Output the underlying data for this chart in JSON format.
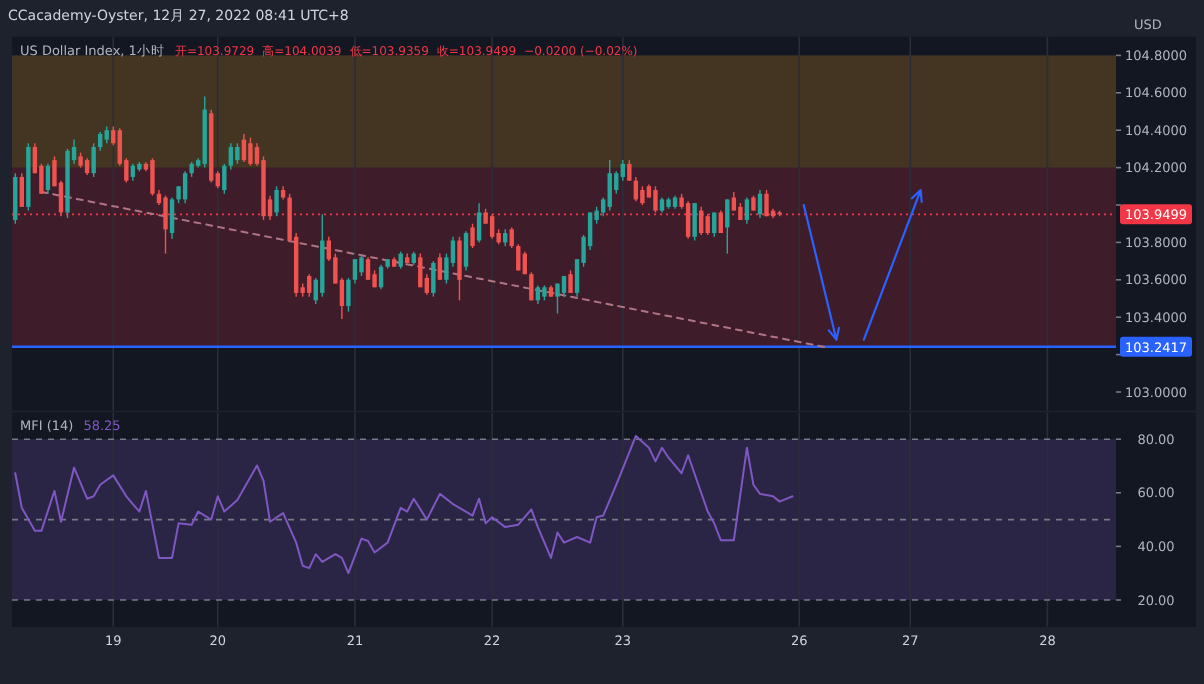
{
  "chart_data": [
    {
      "type": "candlestick",
      "subtitle": "US Dollar Index, 1小时",
      "ylabel": "USD",
      "annotations": [
        "CCacademy-Oyster, 12月 27, 2022 08:41 UTC+8",
        "开=103.9729",
        "高=104.0039",
        "低=103.9359",
        "收=103.9499",
        "−0.0200 (−0.02%)"
      ],
      "categories": [
        null,
        null,
        null,
        null,
        null,
        null,
        null,
        null,
        null,
        null,
        null,
        null,
        null,
        null,
        null,
        "19",
        null,
        null,
        null,
        null,
        null,
        null,
        null,
        null,
        null,
        null,
        null,
        null,
        null,
        null,
        null,
        "20",
        null,
        null,
        null,
        null,
        null,
        null,
        null,
        null,
        null,
        null,
        null,
        null,
        null,
        null,
        null,
        null,
        null,
        null,
        null,
        null,
        "21",
        null,
        null,
        null,
        null,
        null,
        null,
        null,
        null,
        null,
        null,
        null,
        null,
        null,
        null,
        null,
        null,
        null,
        null,
        null,
        null,
        "22",
        null,
        null,
        null,
        null,
        null,
        null,
        null,
        null,
        null,
        null,
        null,
        null,
        null,
        null,
        null,
        null,
        null,
        null,
        null,
        "23",
        null,
        null,
        null,
        null,
        null,
        null,
        null,
        null,
        null,
        null,
        null,
        null,
        null,
        null,
        null,
        null,
        null,
        null,
        null,
        null,
        null,
        null,
        null,
        null,
        null,
        null,
        "26",
        null,
        null,
        null,
        null,
        null,
        null,
        null,
        null,
        null,
        null,
        null,
        null,
        null,
        null,
        null,
        null,
        "27",
        null,
        null,
        null,
        null,
        null,
        null,
        null,
        null,
        null,
        null,
        null,
        null,
        null,
        null,
        null,
        null,
        null,
        null,
        null,
        null,
        "28",
        null,
        null,
        null,
        null,
        null,
        null,
        null,
        null,
        null,
        null
      ],
      "ohlc": [
        [
          103.92,
          104.17,
          103.9,
          104.15
        ],
        [
          104.15,
          104.17,
          103.99,
          103.99
        ],
        [
          103.99,
          104.33,
          103.97,
          104.31
        ],
        [
          104.31,
          104.33,
          104.17,
          104.17
        ],
        [
          104.21,
          104.22,
          104.06,
          104.06
        ],
        [
          104.08,
          104.22,
          104.06,
          104.21
        ],
        [
          104.24,
          104.26,
          104.1,
          104.1
        ],
        [
          104.12,
          104.13,
          103.94,
          103.96
        ],
        [
          103.96,
          104.3,
          103.93,
          104.29
        ],
        [
          104.24,
          104.35,
          104.22,
          104.31
        ],
        [
          104.26,
          104.28,
          104.2,
          104.21
        ],
        [
          104.24,
          104.25,
          104.16,
          104.17
        ],
        [
          104.17,
          104.33,
          104.15,
          104.31
        ],
        [
          104.31,
          104.39,
          104.29,
          104.38
        ],
        [
          104.35,
          104.42,
          104.33,
          104.4
        ],
        [
          104.4,
          104.42,
          104.32,
          104.33
        ],
        [
          104.4,
          104.41,
          104.21,
          104.22
        ],
        [
          104.24,
          104.25,
          104.12,
          104.13
        ],
        [
          104.15,
          104.22,
          104.13,
          104.21
        ],
        [
          104.19,
          104.23,
          104.18,
          104.22
        ],
        [
          104.22,
          104.23,
          104.18,
          104.19
        ],
        [
          104.24,
          104.25,
          104.05,
          104.06
        ],
        [
          104.06,
          104.08,
          104.0,
          104.01
        ],
        [
          104.04,
          104.05,
          103.74,
          103.87
        ],
        [
          103.85,
          104.04,
          103.82,
          104.03
        ],
        [
          104.03,
          104.1,
          104.01,
          104.1
        ],
        [
          104.03,
          104.18,
          104.01,
          104.17
        ],
        [
          104.17,
          104.23,
          104.15,
          104.22
        ],
        [
          104.21,
          104.25,
          104.2,
          104.24
        ],
        [
          104.22,
          104.58,
          104.2,
          104.51
        ],
        [
          104.49,
          104.51,
          104.12,
          104.13
        ],
        [
          104.17,
          104.18,
          104.09,
          104.1
        ],
        [
          104.08,
          104.22,
          104.06,
          104.21
        ],
        [
          104.21,
          104.33,
          104.19,
          104.31
        ],
        [
          104.24,
          104.33,
          104.22,
          104.31
        ],
        [
          104.35,
          104.38,
          104.23,
          104.24
        ],
        [
          104.33,
          104.36,
          104.21,
          104.22
        ],
        [
          104.31,
          104.33,
          104.21,
          104.22
        ],
        [
          104.24,
          104.26,
          103.92,
          103.94
        ],
        [
          104.03,
          104.05,
          103.92,
          103.94
        ],
        [
          103.96,
          104.1,
          103.94,
          104.08
        ],
        [
          104.08,
          104.1,
          104.03,
          104.04
        ],
        [
          104.04,
          104.06,
          103.8,
          103.81
        ],
        [
          103.83,
          103.85,
          103.51,
          103.53
        ],
        [
          103.56,
          103.58,
          103.51,
          103.53
        ],
        [
          103.62,
          103.63,
          103.51,
          103.53
        ],
        [
          103.49,
          103.61,
          103.47,
          103.6
        ],
        [
          103.53,
          103.95,
          103.51,
          103.81
        ],
        [
          103.81,
          103.83,
          103.7,
          103.71
        ],
        [
          103.72,
          103.74,
          103.58,
          103.58
        ],
        [
          103.6,
          103.61,
          103.39,
          103.46
        ],
        [
          103.46,
          103.61,
          103.43,
          103.6
        ],
        [
          103.6,
          103.71,
          103.58,
          103.71
        ],
        [
          103.64,
          103.73,
          103.62,
          103.72
        ],
        [
          103.71,
          103.72,
          103.6,
          103.6
        ],
        [
          103.63,
          103.65,
          103.56,
          103.56
        ],
        [
          103.56,
          103.68,
          103.55,
          103.67
        ],
        [
          103.67,
          103.71,
          103.66,
          103.71
        ],
        [
          103.71,
          103.72,
          103.67,
          103.67
        ],
        [
          103.67,
          103.75,
          103.66,
          103.74
        ],
        [
          103.72,
          103.74,
          103.69,
          103.69
        ],
        [
          103.69,
          103.75,
          103.68,
          103.74
        ],
        [
          103.72,
          103.74,
          103.56,
          103.56
        ],
        [
          103.61,
          103.63,
          103.52,
          103.53
        ],
        [
          103.53,
          103.7,
          103.51,
          103.69
        ],
        [
          103.72,
          103.74,
          103.6,
          103.6
        ],
        [
          103.6,
          103.74,
          103.58,
          103.72
        ],
        [
          103.69,
          103.83,
          103.67,
          103.81
        ],
        [
          103.81,
          103.83,
          103.49,
          103.6
        ],
        [
          103.67,
          103.86,
          103.65,
          103.85
        ],
        [
          103.88,
          103.9,
          103.77,
          103.78
        ],
        [
          103.81,
          104.01,
          103.8,
          103.96
        ],
        [
          103.96,
          103.98,
          103.9,
          103.9
        ],
        [
          103.94,
          103.95,
          103.82,
          103.83
        ],
        [
          103.85,
          103.87,
          103.79,
          103.8
        ],
        [
          103.8,
          103.87,
          103.78,
          103.85
        ],
        [
          103.87,
          103.88,
          103.77,
          103.78
        ],
        [
          103.78,
          103.79,
          103.65,
          103.65
        ],
        [
          103.74,
          103.75,
          103.63,
          103.63
        ],
        [
          103.63,
          103.64,
          103.49,
          103.49
        ],
        [
          103.49,
          103.57,
          103.47,
          103.56
        ],
        [
          103.51,
          103.57,
          103.49,
          103.56
        ],
        [
          103.56,
          103.57,
          103.51,
          103.51
        ],
        [
          103.51,
          103.58,
          103.42,
          103.58
        ],
        [
          103.53,
          103.62,
          103.51,
          103.62
        ],
        [
          103.63,
          103.65,
          103.53,
          103.53
        ],
        [
          103.53,
          103.71,
          103.51,
          103.71
        ],
        [
          103.69,
          103.84,
          103.67,
          103.83
        ],
        [
          103.78,
          103.96,
          103.76,
          103.96
        ],
        [
          103.92,
          103.99,
          103.9,
          103.97
        ],
        [
          103.96,
          104.04,
          103.94,
          104.03
        ],
        [
          103.99,
          104.24,
          103.97,
          104.17
        ],
        [
          104.08,
          104.18,
          104.06,
          104.17
        ],
        [
          104.15,
          104.24,
          104.13,
          104.22
        ],
        [
          104.22,
          104.24,
          104.13,
          104.13
        ],
        [
          104.13,
          104.15,
          104.02,
          104.03
        ],
        [
          104.08,
          104.1,
          104.0,
          104.01
        ],
        [
          104.1,
          104.11,
          104.04,
          104.04
        ],
        [
          104.08,
          104.1,
          103.96,
          103.97
        ],
        [
          103.97,
          104.04,
          103.96,
          104.03
        ],
        [
          103.99,
          104.04,
          103.98,
          104.03
        ],
        [
          103.99,
          104.05,
          103.98,
          104.04
        ],
        [
          104.04,
          104.06,
          103.98,
          103.99
        ],
        [
          104.01,
          104.02,
          103.82,
          103.83
        ],
        [
          103.83,
          104.01,
          103.81,
          104.01
        ],
        [
          103.97,
          103.99,
          103.84,
          103.85
        ],
        [
          103.94,
          103.95,
          103.84,
          103.85
        ],
        [
          103.85,
          103.96,
          103.83,
          103.96
        ],
        [
          103.96,
          103.97,
          103.85,
          103.85
        ],
        [
          103.88,
          104.03,
          103.74,
          104.03
        ],
        [
          104.04,
          104.07,
          103.97,
          103.97
        ],
        [
          103.99,
          104.01,
          103.92,
          103.92
        ],
        [
          103.92,
          104.04,
          103.9,
          104.03
        ],
        [
          104.04,
          104.05,
          103.97,
          103.97
        ],
        [
          103.95,
          104.08,
          103.93,
          104.06
        ],
        [
          104.06,
          104.08,
          103.94,
          103.94
        ],
        [
          103.97,
          103.98,
          103.93,
          103.94
        ],
        [
          103.96,
          103.97,
          103.94,
          103.95
        ],
        null,
        null,
        null,
        null,
        null,
        null,
        null,
        null,
        null,
        null,
        null,
        null,
        null,
        null,
        null,
        null,
        null,
        null,
        null,
        null,
        null,
        null,
        null,
        null,
        null,
        null,
        null,
        null,
        null,
        null,
        null,
        null,
        null,
        null,
        null,
        null,
        null,
        null,
        null,
        null,
        null,
        null,
        null,
        null,
        null,
        null,
        null,
        null,
        null,
        null,
        null
      ],
      "ylim": [
        102.9,
        104.9
      ],
      "yticks": [
        {
          "value": 103.0,
          "label": "103.0000"
        },
        {
          "value": 103.2,
          "label": null
        },
        {
          "value": 103.4,
          "label": "103.4000"
        },
        {
          "value": 103.6,
          "label": "103.6000"
        },
        {
          "value": 103.8,
          "label": "103.8000"
        },
        {
          "value": 104.0,
          "label": null
        },
        {
          "value": 104.2,
          "label": "104.2000"
        },
        {
          "value": 104.4,
          "label": "104.4000"
        },
        {
          "value": 104.6,
          "label": "104.6000"
        },
        {
          "value": 104.8,
          "label": "104.8000"
        }
      ],
      "series": [
        {
          "type": "line",
          "color": "#b07585",
          "line_style": "dashed",
          "values": [
            null,
            null,
            null,
            null,
            104.07,
            null,
            null,
            null,
            null,
            null,
            null,
            null,
            null,
            null,
            null,
            null,
            null,
            null,
            null,
            null,
            null,
            null,
            null,
            null,
            null,
            null,
            null,
            null,
            null,
            null,
            null,
            null,
            null,
            null,
            null,
            null,
            null,
            null,
            null,
            null,
            null,
            null,
            null,
            null,
            null,
            null,
            null,
            null,
            null,
            null,
            null,
            null,
            null,
            null,
            null,
            null,
            null,
            null,
            null,
            null,
            null,
            null,
            null,
            null,
            null,
            null,
            null,
            null,
            null,
            null,
            null,
            null,
            null,
            null,
            null,
            null,
            null,
            null,
            null,
            null,
            null,
            null,
            null,
            null,
            null,
            null,
            null,
            null,
            null,
            null,
            null,
            null,
            null,
            null,
            null,
            null,
            null,
            null,
            null,
            null,
            null,
            null,
            null,
            null,
            null,
            null,
            null,
            null,
            null,
            null,
            null,
            null,
            null,
            null,
            null,
            null,
            null,
            null,
            null,
            null,
            null,
            null,
            null,
            null,
            103.24,
            null,
            null,
            null,
            null,
            null,
            null,
            null,
            null,
            null,
            null,
            null,
            null,
            null,
            null,
            null,
            null,
            null,
            null,
            null,
            null,
            null,
            null,
            null,
            null,
            null,
            null,
            null,
            null,
            null,
            null,
            null,
            null,
            null,
            null,
            null,
            null,
            null,
            null,
            null,
            null,
            null,
            null,
            null,
            null
          ]
        }
      ],
      "tick_labels": "y",
      "grid": "x",
      "ref_lines": [
        {
          "axis": "y",
          "value": 103.2417,
          "label": "103.2417",
          "color": "#2962ff",
          "line_style": "solid"
        },
        {
          "axis": "y",
          "value": 103.9499,
          "label": "103.9499",
          "color": "#f23645",
          "line_style": "dotted"
        }
      ],
      "bands": [
        {
          "axis": "y",
          "from": 104.2,
          "to": 104.8,
          "color": "#f5a623"
        },
        {
          "axis": "y",
          "from": 103.2417,
          "to": 104.2,
          "color": "#e0304a"
        }
      ]
    },
    {
      "type": "line",
      "title": "MFI (14)",
      "subtitle": "58.25",
      "color": "#7e57c2",
      "categories": [
        null,
        null,
        null,
        null,
        null,
        null,
        null,
        null,
        null,
        null,
        null,
        null,
        null,
        null,
        null,
        "19",
        null,
        null,
        null,
        null,
        null,
        null,
        null,
        null,
        null,
        null,
        null,
        null,
        null,
        null,
        null,
        "20",
        null,
        null,
        null,
        null,
        null,
        null,
        null,
        null,
        null,
        null,
        null,
        null,
        null,
        null,
        null,
        null,
        null,
        null,
        null,
        null,
        "21",
        null,
        null,
        null,
        null,
        null,
        null,
        null,
        null,
        null,
        null,
        null,
        null,
        null,
        null,
        null,
        null,
        null,
        null,
        null,
        null,
        "22",
        null,
        null,
        null,
        null,
        null,
        null,
        null,
        null,
        null,
        null,
        null,
        null,
        null,
        null,
        null,
        null,
        null,
        null,
        null,
        "23",
        null,
        null,
        null,
        null,
        null,
        null,
        null,
        null,
        null,
        null,
        null,
        null,
        null,
        null,
        null,
        null,
        null,
        null,
        null,
        null,
        null,
        null,
        null,
        null,
        null,
        null,
        "26",
        null,
        null,
        null,
        null,
        null,
        null,
        null,
        null,
        null,
        null,
        null,
        null,
        null,
        null,
        null,
        null,
        "27",
        null,
        null,
        null,
        null,
        null,
        null,
        null,
        null,
        null,
        null,
        null,
        null,
        null,
        null,
        null,
        null,
        null,
        null,
        null,
        null,
        "28",
        null,
        null,
        null,
        null,
        null,
        null,
        null,
        null,
        null,
        null
      ],
      "values": [
        67.3,
        54.4,
        null,
        45.8,
        45.8,
        null,
        60.7,
        49.2,
        null,
        69.4,
        null,
        57.8,
        58.7,
        63.0,
        null,
        66.5,
        null,
        58.7,
        55.8,
        53.0,
        60.7,
        null,
        35.7,
        null,
        35.7,
        48.6,
        null,
        48.1,
        53.0,
        null,
        50.0,
        58.7,
        53.0,
        null,
        57.3,
        61.6,
        null,
        70.2,
        64.5,
        49.2,
        null,
        52.4,
        null,
        41.4,
        32.8,
        31.9,
        37.1,
        34.2,
        null,
        37.1,
        35.7,
        30.0,
        null,
        42.9,
        42.0,
        37.7,
        null,
        41.4,
        null,
        54.4,
        53.0,
        57.8,
        null,
        50.0,
        null,
        59.6,
        null,
        55.8,
        54.4,
        null,
        51.5,
        57.8,
        48.6,
        50.9,
        null,
        47.2,
        null,
        48.1,
        null,
        53.8,
        47.2,
        null,
        35.7,
        45.2,
        41.4,
        null,
        43.5,
        null,
        41.4,
        50.9,
        51.5,
        null,
        63.0,
        null,
        75.1,
        81.2,
        null,
        76.8,
        71.7,
        76.8,
        73.1,
        null,
        67.3,
        74.0,
        null,
        null,
        53.0,
        48.6,
        42.3,
        null,
        42.3,
        null,
        76.8,
        63.0,
        59.6,
        null,
        58.7,
        56.7,
        null,
        58.7,
        null,
        null,
        null,
        null,
        null,
        null,
        null,
        null,
        null,
        null,
        null,
        null,
        null,
        null,
        null,
        null,
        null,
        null,
        null,
        null,
        null,
        null,
        null,
        null,
        null,
        null,
        null,
        null,
        null,
        null,
        null,
        null,
        null,
        null,
        null,
        null,
        null,
        null,
        null,
        null,
        null,
        null,
        null,
        null,
        null,
        null,
        null,
        null,
        null
      ],
      "ylim": [
        10,
        90
      ],
      "yticks": [
        {
          "value": 20,
          "label": "20.00"
        },
        {
          "value": 40,
          "label": "40.00"
        },
        {
          "value": 60,
          "label": "60.00"
        },
        {
          "value": 80,
          "label": "80.00"
        }
      ],
      "grid": "x",
      "ref_lines": [
        {
          "axis": "y",
          "value": 80,
          "color": "#787b86",
          "line_style": "dashed"
        },
        {
          "axis": "y",
          "value": 50,
          "color": "#787b86",
          "line_style": "dashed"
        },
        {
          "axis": "y",
          "value": 20,
          "color": "#787b86",
          "line_style": "dashed"
        }
      ],
      "bands": [
        {
          "axis": "y",
          "from": 20,
          "to": 80,
          "color": "#7e57c2"
        }
      ]
    }
  ]
}
